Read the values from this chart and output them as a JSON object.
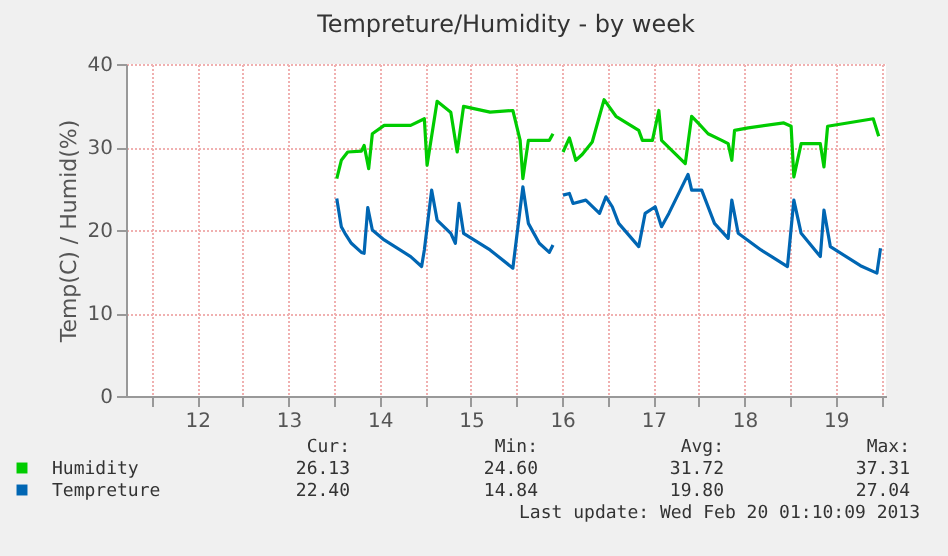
{
  "chart_data": {
    "type": "line",
    "title": "Tempreture/Humidity - by week",
    "ylabel": "Temp(C) / Humid(%)",
    "xlim": [
      11.72,
      20.05
    ],
    "ylim": [
      0,
      40
    ],
    "yticks": [
      0,
      10,
      20,
      30,
      40
    ],
    "xticks": [
      {
        "value": 12,
        "label": null
      },
      {
        "value": 12.5,
        "label": "12"
      },
      {
        "value": 13,
        "label": null
      },
      {
        "value": 13.5,
        "label": "13"
      },
      {
        "value": 14,
        "label": null
      },
      {
        "value": 14.5,
        "label": "14"
      },
      {
        "value": 15,
        "label": null
      },
      {
        "value": 15.5,
        "label": "15"
      },
      {
        "value": 16,
        "label": null
      },
      {
        "value": 16.5,
        "label": "16"
      },
      {
        "value": 17,
        "label": null
      },
      {
        "value": 17.5,
        "label": "17"
      },
      {
        "value": 18,
        "label": null
      },
      {
        "value": 18.5,
        "label": "18"
      },
      {
        "value": 19,
        "label": null
      },
      {
        "value": 19.5,
        "label": "19"
      },
      {
        "value": 20,
        "label": null
      }
    ],
    "grid": true,
    "legend": "bottom",
    "line_style": "solid",
    "marker": "none",
    "series": [
      {
        "name": "Humidity",
        "color": "#00cc00",
        "x": [
          14.03,
          14.08,
          14.15,
          14.3,
          14.33,
          14.38,
          14.42,
          14.55,
          14.84,
          14.99,
          15.02,
          15.13,
          15.28,
          15.35,
          15.42,
          15.71,
          15.96,
          16.04,
          16.07,
          16.13,
          16.36,
          16.4,
          16.45,
          16.51,
          16.58,
          16.65,
          16.72,
          16.83,
          16.96,
          17.09,
          17.34,
          17.38,
          17.49,
          17.56,
          17.59,
          17.85,
          17.92,
          17.99,
          18.1,
          18.25,
          18.32,
          18.36,
          18.39,
          18.54,
          18.93,
          19.01,
          19.04,
          19.12,
          19.33,
          19.37,
          19.41,
          19.91,
          19.97
        ],
        "values": [
          26.2,
          28.4,
          29.4,
          29.5,
          30.2,
          27.4,
          31.6,
          32.6,
          32.6,
          33.4,
          27.8,
          35.5,
          34.2,
          29.4,
          34.9,
          34.2,
          34.4,
          30.8,
          26.2,
          30.8,
          30.8,
          31.6,
          null,
          29.4,
          31.1,
          28.4,
          29.1,
          30.6,
          35.7,
          33.7,
          32.0,
          30.8,
          30.8,
          34.4,
          30.8,
          28.0,
          33.7,
          32.9,
          31.6,
          30.8,
          30.4,
          28.4,
          32.0,
          32.3,
          32.9,
          32.5,
          26.4,
          30.4,
          30.4,
          27.6,
          32.5,
          33.4,
          31.3
        ]
      },
      {
        "name": "Tempreture",
        "color": "#0066b3",
        "x": [
          14.03,
          14.08,
          14.12,
          14.19,
          14.3,
          14.33,
          14.37,
          14.42,
          14.55,
          14.84,
          14.96,
          14.99,
          15.07,
          15.13,
          15.28,
          15.33,
          15.37,
          15.42,
          15.71,
          15.96,
          16.07,
          16.13,
          16.25,
          16.36,
          16.4,
          16.45,
          16.51,
          16.58,
          16.62,
          16.76,
          16.91,
          16.98,
          17.05,
          17.12,
          17.34,
          17.41,
          17.52,
          17.59,
          17.63,
          17.67,
          17.88,
          17.92,
          18.03,
          18.17,
          18.32,
          18.36,
          18.43,
          18.68,
          18.97,
          19.04,
          19.12,
          19.33,
          19.37,
          19.44,
          19.77,
          19.95,
          19.99
        ],
        "values": [
          23.8,
          20.4,
          19.6,
          18.4,
          17.3,
          17.2,
          22.7,
          20.0,
          18.8,
          16.8,
          15.6,
          17.6,
          24.8,
          21.2,
          19.6,
          18.4,
          23.2,
          19.6,
          17.6,
          15.4,
          25.2,
          20.8,
          18.4,
          17.3,
          18.2,
          null,
          24.2,
          24.4,
          23.2,
          23.6,
          22.0,
          24.0,
          22.8,
          20.8,
          18.0,
          22.0,
          22.8,
          20.4,
          21.2,
          22.0,
          26.7,
          24.8,
          24.8,
          20.8,
          19.0,
          23.6,
          19.6,
          17.6,
          15.6,
          23.6,
          19.6,
          16.8,
          22.4,
          18.0,
          15.7,
          14.8,
          17.8
        ]
      }
    ],
    "annotations": [
      "Cur:",
      "Min:",
      "Avg:",
      "Max:",
      "26.13",
      "24.60",
      "31.72",
      "37.31",
      "22.40",
      "14.84",
      "19.80",
      "27.04",
      "Last update: Wed Feb 20 01:10:09 2013"
    ]
  }
}
